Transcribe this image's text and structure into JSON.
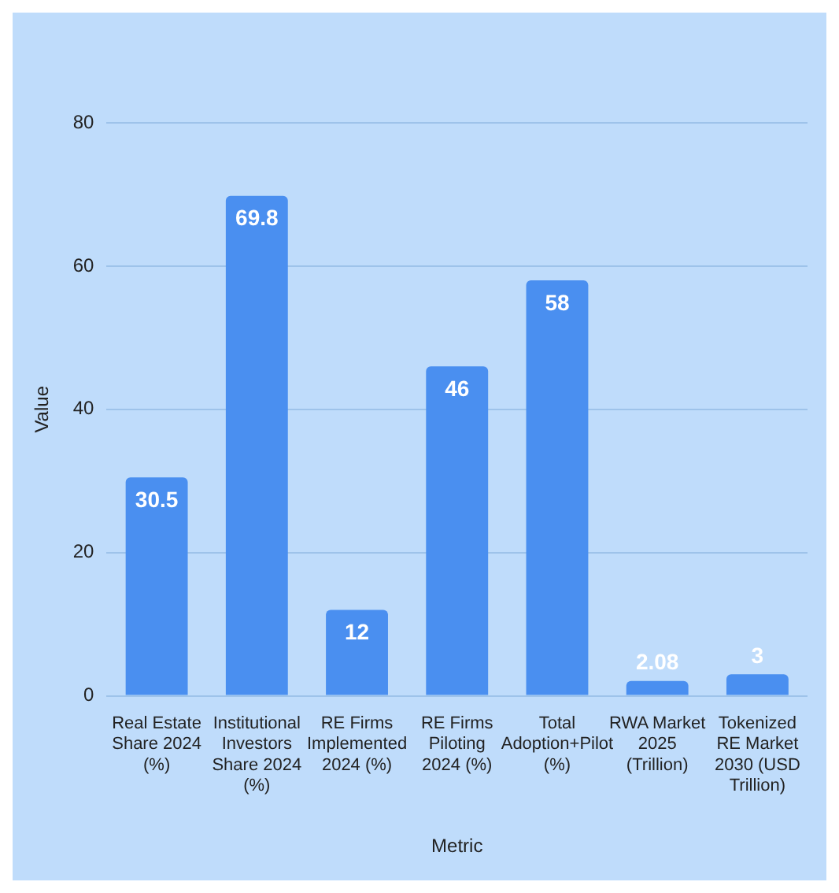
{
  "chart_data": {
    "type": "bar",
    "xlabel": "Metric",
    "ylabel": "Value",
    "categories": [
      "Real Estate Share 2024 (%)",
      "Institutional Investors Share 2024 (%)",
      "RE Firms Implemented 2024 (%)",
      "RE Firms Piloting 2024 (%)",
      "Total Adoption+Pilot (%)",
      "RWA Market 2025 (Trillion)",
      "Tokenized RE Market 2030 (USD Trillion)"
    ],
    "values": [
      30.5,
      69.8,
      12,
      46,
      58,
      2.08,
      3
    ],
    "color": "#4a8ff0",
    "ylim": [
      0,
      80
    ],
    "yticks": [
      0,
      20,
      40,
      60,
      80
    ],
    "grid": "y",
    "legend": false,
    "data_labels": true
  }
}
